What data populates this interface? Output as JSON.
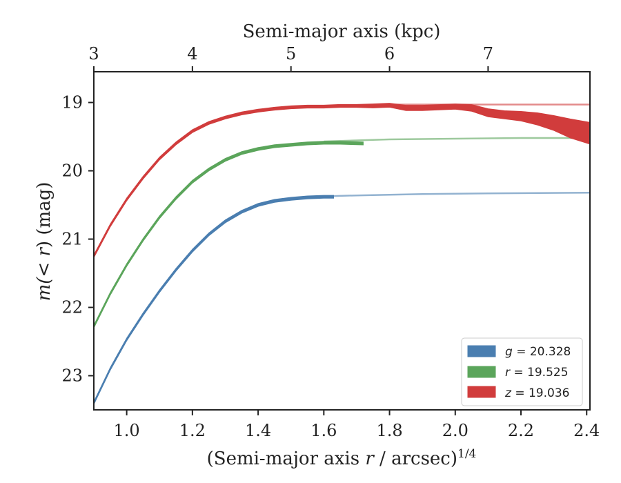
{
  "chart_data": {
    "type": "line",
    "xlabel_bottom": "(Semi-major axis ",
    "xlabel_bottom_var": "r",
    "xlabel_bottom_tail": " / arcsec)",
    "xlabel_bottom_exp": "1/4",
    "xlabel_top": "Semi-major axis (kpc)",
    "ylabel_prefix": "m(",
    "ylabel_var": "< r",
    "ylabel_suffix": ") (mag)",
    "xlim": [
      0.9,
      2.41
    ],
    "ylim": [
      23.5,
      18.55
    ],
    "y_inverted": true,
    "x_ticks": [
      1.0,
      1.2,
      1.4,
      1.6,
      1.8,
      2.0,
      2.2,
      2.4
    ],
    "x_tick_labels": [
      "1.0",
      "1.2",
      "1.4",
      "1.6",
      "1.8",
      "2.0",
      "2.2",
      "2.4"
    ],
    "top_ticks_kpc": [
      3,
      4,
      5,
      6,
      7
    ],
    "top_tick_labels": [
      "3",
      "4",
      "5",
      "6",
      "7"
    ],
    "top_ticks_x": [
      0.9,
      1.2,
      1.5,
      1.8,
      2.1
    ],
    "y_ticks": [
      19,
      20,
      21,
      22,
      23
    ],
    "y_tick_labels": [
      "19",
      "20",
      "21",
      "22",
      "23"
    ],
    "grid": false,
    "legend_position": "bottom-right",
    "series": [
      {
        "band": "g",
        "legend": "g = 20.328",
        "legend_var": "g",
        "legend_val": " = 20.328",
        "color": "#4a7eb0",
        "x": [
          0.9,
          0.95,
          1.0,
          1.05,
          1.1,
          1.15,
          1.2,
          1.25,
          1.3,
          1.35,
          1.4,
          1.45,
          1.5,
          1.55,
          1.6,
          1.63
        ],
        "y": [
          23.4,
          22.9,
          22.47,
          22.1,
          21.76,
          21.45,
          21.17,
          20.93,
          20.74,
          20.6,
          20.5,
          20.44,
          20.41,
          20.39,
          20.38,
          20.38
        ],
        "band_half_width": [
          0.02,
          0.02,
          0.02,
          0.02,
          0.02,
          0.02,
          0.02,
          0.02,
          0.02,
          0.02,
          0.02,
          0.02,
          0.02,
          0.02,
          0.02,
          0.02
        ],
        "model_x": [
          1.55,
          1.7,
          1.9,
          2.1,
          2.41
        ],
        "model_y": [
          20.38,
          20.36,
          20.34,
          20.33,
          20.32
        ]
      },
      {
        "band": "r",
        "legend": "r = 19.525",
        "legend_var": "r",
        "legend_val": " = 19.525",
        "color": "#5ba55b",
        "x": [
          0.9,
          0.95,
          1.0,
          1.05,
          1.1,
          1.15,
          1.2,
          1.25,
          1.3,
          1.35,
          1.4,
          1.45,
          1.5,
          1.55,
          1.6,
          1.65,
          1.72
        ],
        "y": [
          22.28,
          21.8,
          21.38,
          21.01,
          20.68,
          20.4,
          20.16,
          19.98,
          19.84,
          19.74,
          19.68,
          19.64,
          19.62,
          19.6,
          19.59,
          19.59,
          19.6
        ],
        "band_half_width": [
          0.02,
          0.02,
          0.02,
          0.02,
          0.02,
          0.02,
          0.02,
          0.02,
          0.02,
          0.02,
          0.02,
          0.02,
          0.02,
          0.02,
          0.02,
          0.02,
          0.02
        ],
        "model_x": [
          1.6,
          1.8,
          2.0,
          2.2,
          2.41
        ],
        "model_y": [
          19.57,
          19.54,
          19.53,
          19.52,
          19.52
        ]
      },
      {
        "band": "z",
        "legend": "z = 19.036",
        "legend_var": "z",
        "legend_val": " = 19.036",
        "color": "#d13c3c",
        "x": [
          0.9,
          0.95,
          1.0,
          1.05,
          1.1,
          1.15,
          1.2,
          1.25,
          1.3,
          1.35,
          1.4,
          1.45,
          1.5,
          1.55,
          1.6,
          1.65,
          1.7,
          1.75,
          1.8,
          1.85,
          1.9,
          1.95,
          2.0,
          2.05,
          2.1,
          2.15,
          2.2,
          2.25,
          2.3,
          2.35,
          2.41
        ],
        "y": [
          21.25,
          20.8,
          20.42,
          20.1,
          19.82,
          19.6,
          19.42,
          19.3,
          19.22,
          19.16,
          19.12,
          19.09,
          19.07,
          19.06,
          19.06,
          19.05,
          19.05,
          19.05,
          19.04,
          19.08,
          19.08,
          19.07,
          19.06,
          19.08,
          19.15,
          19.18,
          19.2,
          19.24,
          19.3,
          19.38,
          19.45
        ],
        "band_half_width": [
          0.02,
          0.02,
          0.02,
          0.02,
          0.02,
          0.02,
          0.02,
          0.02,
          0.02,
          0.02,
          0.02,
          0.02,
          0.02,
          0.02,
          0.02,
          0.02,
          0.02,
          0.03,
          0.03,
          0.04,
          0.04,
          0.04,
          0.04,
          0.05,
          0.06,
          0.06,
          0.07,
          0.09,
          0.11,
          0.14,
          0.16
        ],
        "model_x": [
          1.8,
          2.0,
          2.2,
          2.41
        ],
        "model_y": [
          19.03,
          19.03,
          19.03,
          19.03
        ]
      }
    ]
  }
}
